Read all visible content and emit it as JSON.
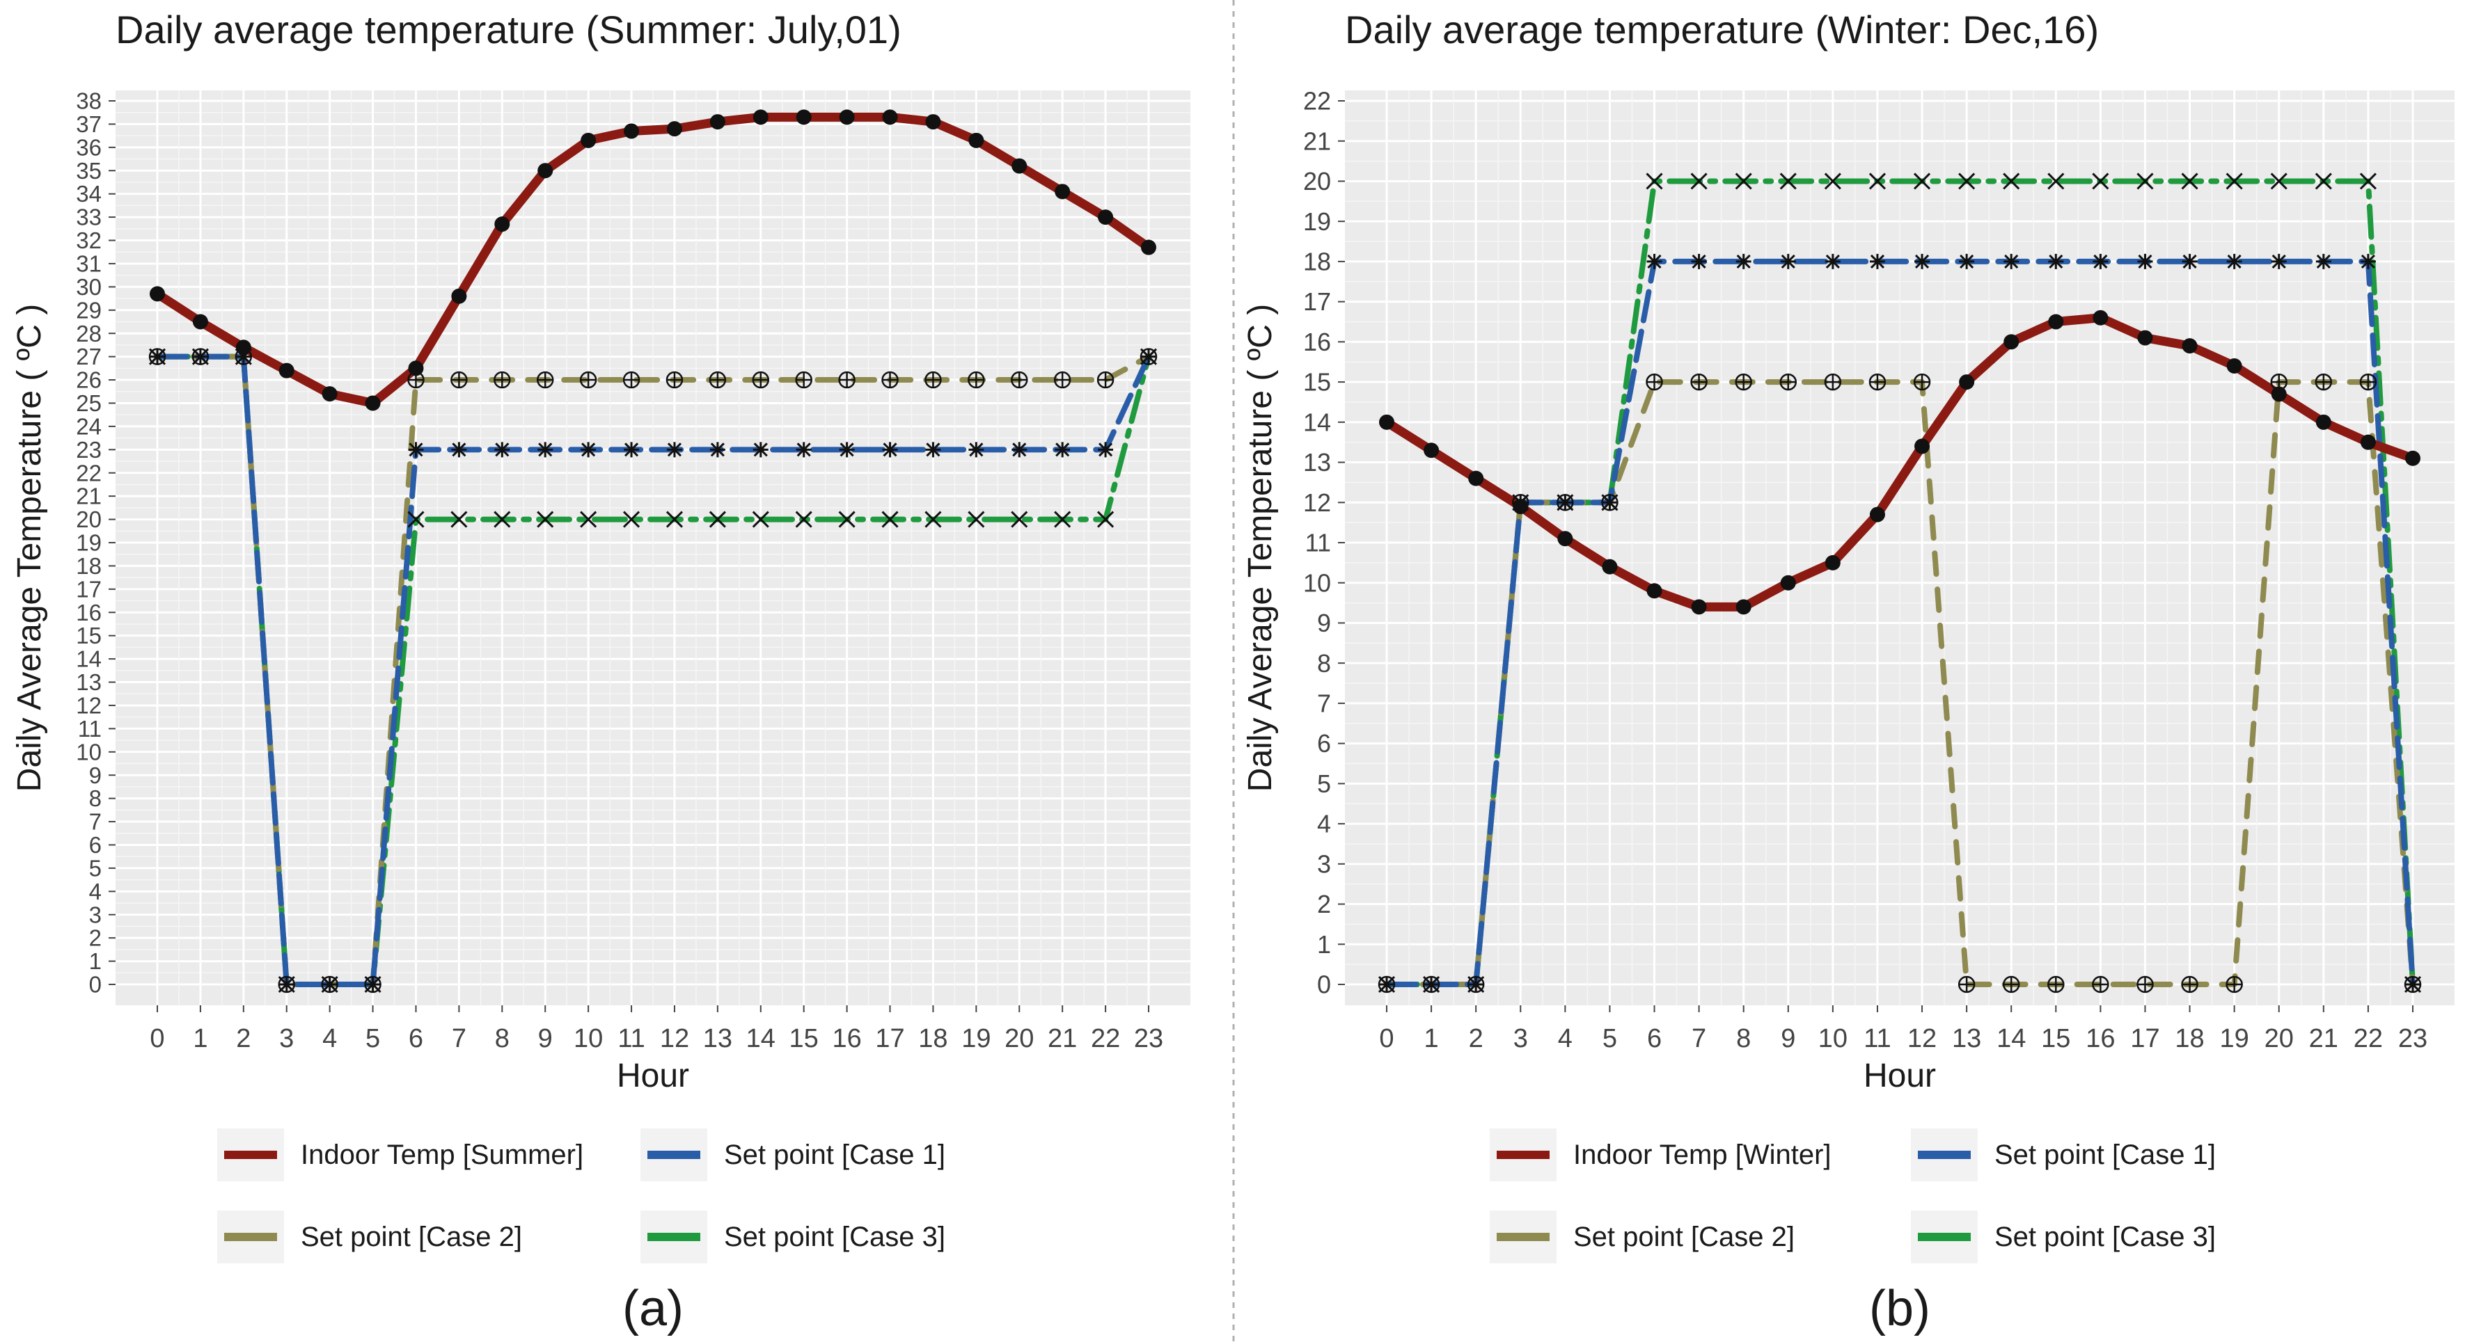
{
  "chart_data": [
    {
      "type": "line",
      "title": "Daily average temperature (Summer: July,01)",
      "xlabel": "Hour",
      "ylabel": "Daily Average Temperature ( ºC )",
      "panel_label": "(a)",
      "xlim": [
        0,
        23
      ],
      "ylim": [
        0,
        38
      ],
      "x_ticks": [
        "0",
        "1",
        "2",
        "3",
        "4",
        "5",
        "6",
        "7",
        "8",
        "9",
        "10",
        "11",
        "12",
        "13",
        "14",
        "15",
        "16",
        "17",
        "18",
        "19",
        "20",
        "21",
        "22",
        "23"
      ],
      "y_ticks": [
        "0",
        "1",
        "2",
        "3",
        "4",
        "5",
        "6",
        "7",
        "8",
        "9",
        "10",
        "11",
        "12",
        "13",
        "14",
        "15",
        "16",
        "17",
        "18",
        "19",
        "20",
        "21",
        "22",
        "23",
        "24",
        "25",
        "26",
        "27",
        "28",
        "29",
        "30",
        "31",
        "32",
        "33",
        "34",
        "35",
        "36",
        "37",
        "38"
      ],
      "grid": true,
      "legend_position": "bottom",
      "x": [
        0,
        1,
        2,
        3,
        4,
        5,
        6,
        7,
        8,
        9,
        10,
        11,
        12,
        13,
        14,
        15,
        16,
        17,
        18,
        19,
        20,
        21,
        22,
        23
      ],
      "series": [
        {
          "name": "Indoor Temp [Summer]",
          "color": "#8b1a12",
          "style": "solid",
          "marker": "dot",
          "values": [
            29.7,
            28.5,
            27.4,
            26.4,
            25.4,
            25.0,
            26.5,
            29.6,
            32.7,
            35.0,
            36.3,
            36.7,
            36.8,
            37.1,
            37.3,
            37.3,
            37.3,
            37.3,
            37.1,
            36.3,
            35.2,
            34.1,
            33.0,
            31.7
          ]
        },
        {
          "name": "Set point [Case 1]",
          "color": "#2a5da8",
          "style": "longdash",
          "marker": "asterisk",
          "values": [
            27,
            27,
            27,
            0,
            0,
            0,
            23,
            23,
            23,
            23,
            23,
            23,
            23,
            23,
            23,
            23,
            23,
            23,
            23,
            23,
            23,
            23,
            23,
            27
          ]
        },
        {
          "name": "Set point [Case 2]",
          "color": "#8f8a50",
          "style": "dash",
          "marker": "circleplus",
          "values": [
            27,
            27,
            27,
            0,
            0,
            0,
            26,
            26,
            26,
            26,
            26,
            26,
            26,
            26,
            26,
            26,
            26,
            26,
            26,
            26,
            26,
            26,
            26,
            27
          ]
        },
        {
          "name": "Set point [Case 3]",
          "color": "#1f9a3e",
          "style": "dotdash",
          "marker": "cross",
          "values": [
            27,
            27,
            27,
            0,
            0,
            0,
            20,
            20,
            20,
            20,
            20,
            20,
            20,
            20,
            20,
            20,
            20,
            20,
            20,
            20,
            20,
            20,
            20,
            27
          ]
        }
      ]
    },
    {
      "type": "line",
      "title": "Daily average temperature (Winter: Dec,16)",
      "xlabel": "Hour",
      "ylabel": "Daily Average Temperature ( ºC )",
      "panel_label": "(b)",
      "xlim": [
        0,
        23
      ],
      "ylim": [
        0,
        22
      ],
      "x_ticks": [
        "0",
        "1",
        "2",
        "3",
        "4",
        "5",
        "6",
        "7",
        "8",
        "9",
        "10",
        "11",
        "12",
        "13",
        "14",
        "15",
        "16",
        "17",
        "18",
        "19",
        "20",
        "21",
        "22",
        "23"
      ],
      "y_ticks": [
        "0",
        "1",
        "2",
        "3",
        "4",
        "5",
        "6",
        "7",
        "8",
        "9",
        "10",
        "11",
        "12",
        "13",
        "14",
        "15",
        "16",
        "17",
        "18",
        "19",
        "20",
        "21",
        "22"
      ],
      "grid": true,
      "legend_position": "bottom",
      "x": [
        0,
        1,
        2,
        3,
        4,
        5,
        6,
        7,
        8,
        9,
        10,
        11,
        12,
        13,
        14,
        15,
        16,
        17,
        18,
        19,
        20,
        21,
        22,
        23
      ],
      "series": [
        {
          "name": "Indoor Temp [Winter]",
          "color": "#8b1a12",
          "style": "solid",
          "marker": "dot",
          "values": [
            14.0,
            13.3,
            12.6,
            11.9,
            11.1,
            10.4,
            9.8,
            9.4,
            9.4,
            10.0,
            10.5,
            11.7,
            13.4,
            15.0,
            16.0,
            16.5,
            16.6,
            16.1,
            15.9,
            15.4,
            14.7,
            14.0,
            13.5,
            13.1
          ]
        },
        {
          "name": "Set point [Case 1]",
          "color": "#2a5da8",
          "style": "longdash",
          "marker": "asterisk",
          "values": [
            0,
            0,
            0,
            12,
            12,
            12,
            18,
            18,
            18,
            18,
            18,
            18,
            18,
            18,
            18,
            18,
            18,
            18,
            18,
            18,
            18,
            18,
            18,
            0
          ]
        },
        {
          "name": "Set point [Case 2]",
          "color": "#8f8a50",
          "style": "dash",
          "marker": "circleplus",
          "values": [
            0,
            0,
            0,
            12,
            12,
            12,
            15,
            15,
            15,
            15,
            15,
            15,
            15,
            0,
            0,
            0,
            0,
            0,
            0,
            0,
            15,
            15,
            15,
            0
          ]
        },
        {
          "name": "Set point [Case 3]",
          "color": "#1f9a3e",
          "style": "dotdash",
          "marker": "cross",
          "values": [
            0,
            0,
            0,
            12,
            12,
            12,
            20,
            20,
            20,
            20,
            20,
            20,
            20,
            20,
            20,
            20,
            20,
            20,
            20,
            20,
            20,
            20,
            20,
            0
          ]
        }
      ]
    }
  ]
}
